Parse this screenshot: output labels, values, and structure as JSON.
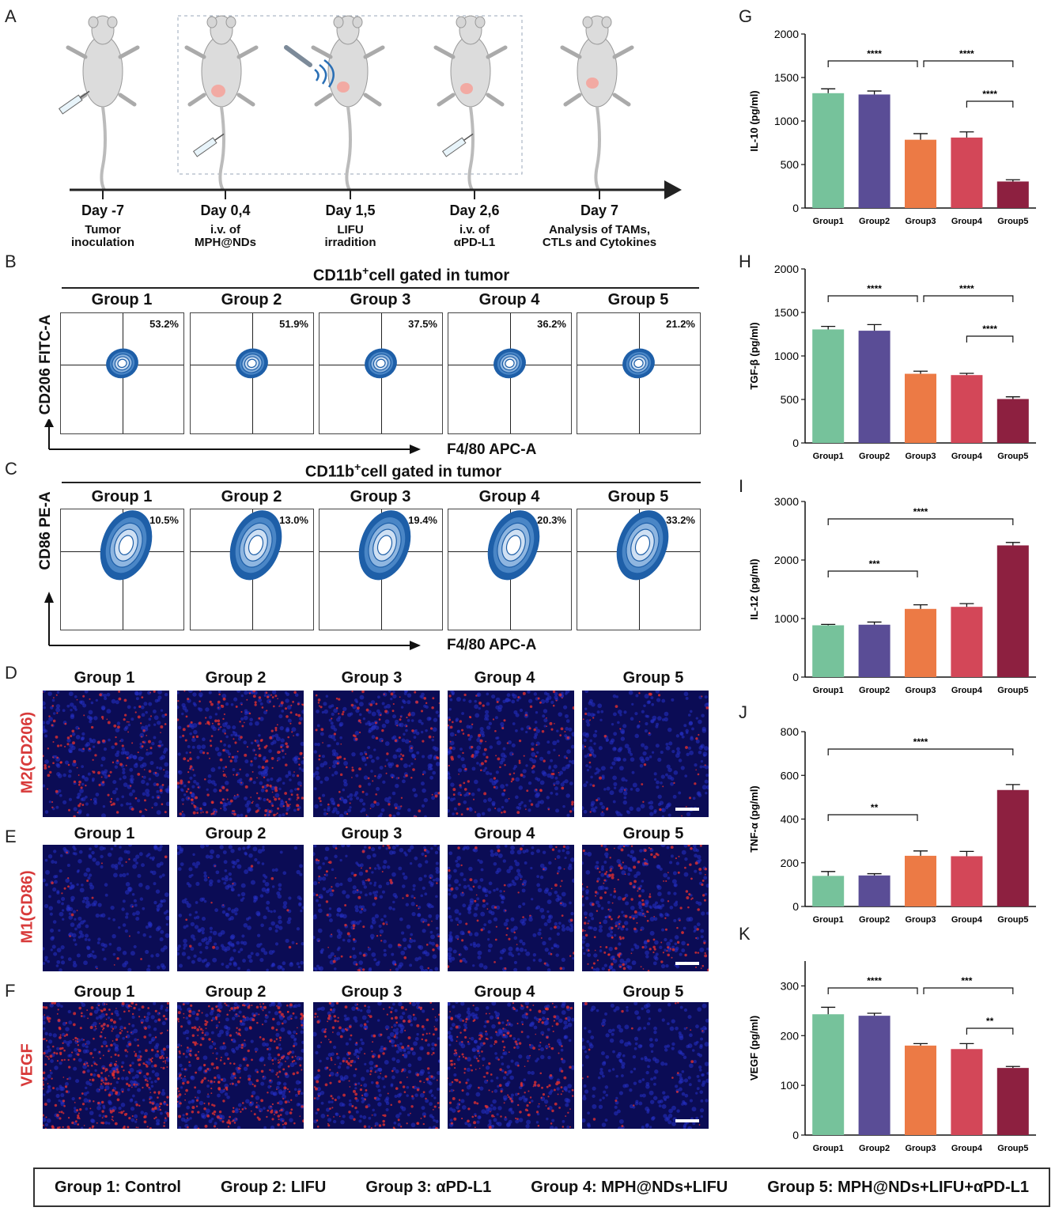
{
  "panels": {
    "A": "A",
    "B": "B",
    "C": "C",
    "D": "D",
    "E": "E",
    "F": "F",
    "G": "G",
    "H": "H",
    "I": "I",
    "J": "J",
    "K": "K"
  },
  "timeline": [
    {
      "day": "Day -7",
      "desc1": "Tumor",
      "desc2": "inoculation"
    },
    {
      "day": "Day 0,4",
      "desc1": "i.v. of",
      "desc2": "MPH@NDs"
    },
    {
      "day": "Day 1,5",
      "desc1": "LIFU",
      "desc2": "irradition"
    },
    {
      "day": "Day 2,6",
      "desc1": "i.v. of",
      "desc2": "αPD-L1"
    },
    {
      "day": "Day 7",
      "desc1": "Analysis of TAMs,",
      "desc2": "CTLs and Cytokines"
    }
  ],
  "flowB": {
    "title": "CD11b",
    "title_sup": "+",
    "title_rest": "cell gated in tumor",
    "ylabel": "CD206 FITC-A",
    "xlabel": "F4/80 APC-A",
    "groups": [
      "Group 1",
      "Group 2",
      "Group 3",
      "Group 4",
      "Group 5"
    ],
    "pcts": [
      "53.2%",
      "51.9%",
      "37.5%",
      "36.2%",
      "21.2%"
    ]
  },
  "flowC": {
    "title": "CD11b",
    "title_sup": "+",
    "title_rest": "cell gated in tumor",
    "ylabel": "CD86 PE-A",
    "xlabel": "F4/80 APC-A",
    "groups": [
      "Group 1",
      "Group 2",
      "Group 3",
      "Group 4",
      "Group 5"
    ],
    "pcts": [
      "10.5%",
      "13.0%",
      "19.4%",
      "20.3%",
      "33.2%"
    ]
  },
  "if_rows": [
    {
      "label": "M2(CD206)",
      "groups": [
        "Group 1",
        "Group 2",
        "Group 3",
        "Group 4",
        "Group 5"
      ],
      "red_level": [
        0.35,
        0.6,
        0.3,
        0.3,
        0.1
      ]
    },
    {
      "label": "M1(CD86)",
      "groups": [
        "Group 1",
        "Group 2",
        "Group 3",
        "Group 4",
        "Group 5"
      ],
      "red_level": [
        0.05,
        0.03,
        0.2,
        0.15,
        0.45
      ]
    },
    {
      "label": "VEGF",
      "groups": [
        "Group 1",
        "Group 2",
        "Group 3",
        "Group 4",
        "Group 5"
      ],
      "red_level": [
        0.85,
        0.8,
        0.5,
        0.55,
        0.05
      ]
    }
  ],
  "colors": {
    "group1": "#76c29b",
    "group2": "#5a4d96",
    "group3": "#ec7a45",
    "group4": "#d34758",
    "group5": "#8d2040",
    "if_red": "#e03030",
    "label_red": "#d83a3a"
  },
  "chart_data": [
    {
      "panel": "G",
      "type": "bar",
      "categories": [
        "Group1",
        "Group2",
        "Group3",
        "Group4",
        "Group5"
      ],
      "values": [
        1320,
        1305,
        785,
        810,
        305
      ],
      "errors": [
        50,
        40,
        70,
        65,
        20
      ],
      "ylabel": "IL-10  (pg/ml)",
      "ylim": [
        0,
        2000
      ],
      "yticks": [
        0,
        500,
        1000,
        1500,
        2000
      ],
      "sig": [
        {
          "from": 0,
          "to": 2,
          "label": "****",
          "level": 0
        },
        {
          "from": 2,
          "to": 4,
          "label": "****",
          "level": 0
        },
        {
          "from": 3,
          "to": 4,
          "label": "****",
          "level": 1
        }
      ]
    },
    {
      "panel": "H",
      "type": "bar",
      "categories": [
        "Group1",
        "Group2",
        "Group3",
        "Group4",
        "Group5"
      ],
      "values": [
        1305,
        1290,
        795,
        780,
        505
      ],
      "errors": [
        35,
        70,
        30,
        20,
        25
      ],
      "ylabel": "TGF-β (pg/ml)",
      "ylim": [
        0,
        2000
      ],
      "yticks": [
        0,
        500,
        1000,
        1500,
        2000
      ],
      "sig": [
        {
          "from": 0,
          "to": 2,
          "label": "****",
          "level": 0
        },
        {
          "from": 2,
          "to": 4,
          "label": "****",
          "level": 0
        },
        {
          "from": 3,
          "to": 4,
          "label": "****",
          "level": 1
        }
      ]
    },
    {
      "panel": "I",
      "type": "bar",
      "categories": [
        "Group1",
        "Group2",
        "Group3",
        "Group4",
        "Group5"
      ],
      "values": [
        885,
        895,
        1165,
        1200,
        2250
      ],
      "errors": [
        15,
        45,
        70,
        55,
        50
      ],
      "ylabel": "IL-12  (pg/ml)",
      "ylim": [
        0,
        3000
      ],
      "yticks": [
        0,
        1000,
        2000,
        3000
      ],
      "sig": [
        {
          "from": 0,
          "to": 4,
          "label": "****",
          "level": -1
        },
        {
          "from": 0,
          "to": 2,
          "label": "***",
          "level": 0
        }
      ]
    },
    {
      "panel": "J",
      "type": "bar",
      "categories": [
        "Group1",
        "Group2",
        "Group3",
        "Group4",
        "Group5"
      ],
      "values": [
        140,
        142,
        232,
        230,
        533
      ],
      "errors": [
        20,
        8,
        22,
        22,
        25
      ],
      "ylabel": "TNF-α  (pg/ml)",
      "ylim": [
        0,
        800
      ],
      "yticks": [
        0,
        200,
        400,
        600,
        800
      ],
      "sig": [
        {
          "from": 0,
          "to": 4,
          "label": "****",
          "level": -1
        },
        {
          "from": 0,
          "to": 2,
          "label": "**",
          "level": 0
        }
      ]
    },
    {
      "panel": "K",
      "type": "bar",
      "categories": [
        "Group1",
        "Group2",
        "Group3",
        "Group4",
        "Group5"
      ],
      "values": [
        243,
        240,
        180,
        173,
        135
      ],
      "errors": [
        14,
        5,
        4,
        11,
        3
      ],
      "ylabel": "VEGF  (pg/ml)",
      "ylim": [
        0,
        350
      ],
      "yticks": [
        0,
        100,
        200,
        300
      ],
      "sig": [
        {
          "from": 0,
          "to": 2,
          "label": "****",
          "level": 0
        },
        {
          "from": 2,
          "to": 4,
          "label": "***",
          "level": 0
        },
        {
          "from": 3,
          "to": 4,
          "label": "**",
          "level": 1
        }
      ]
    }
  ],
  "legend": [
    "Group 1: Control",
    "Group 2: LIFU",
    "Group 3: αPD-L1",
    "Group 4: MPH@NDs+LIFU",
    "Group 5: MPH@NDs+LIFU+αPD-L1"
  ]
}
